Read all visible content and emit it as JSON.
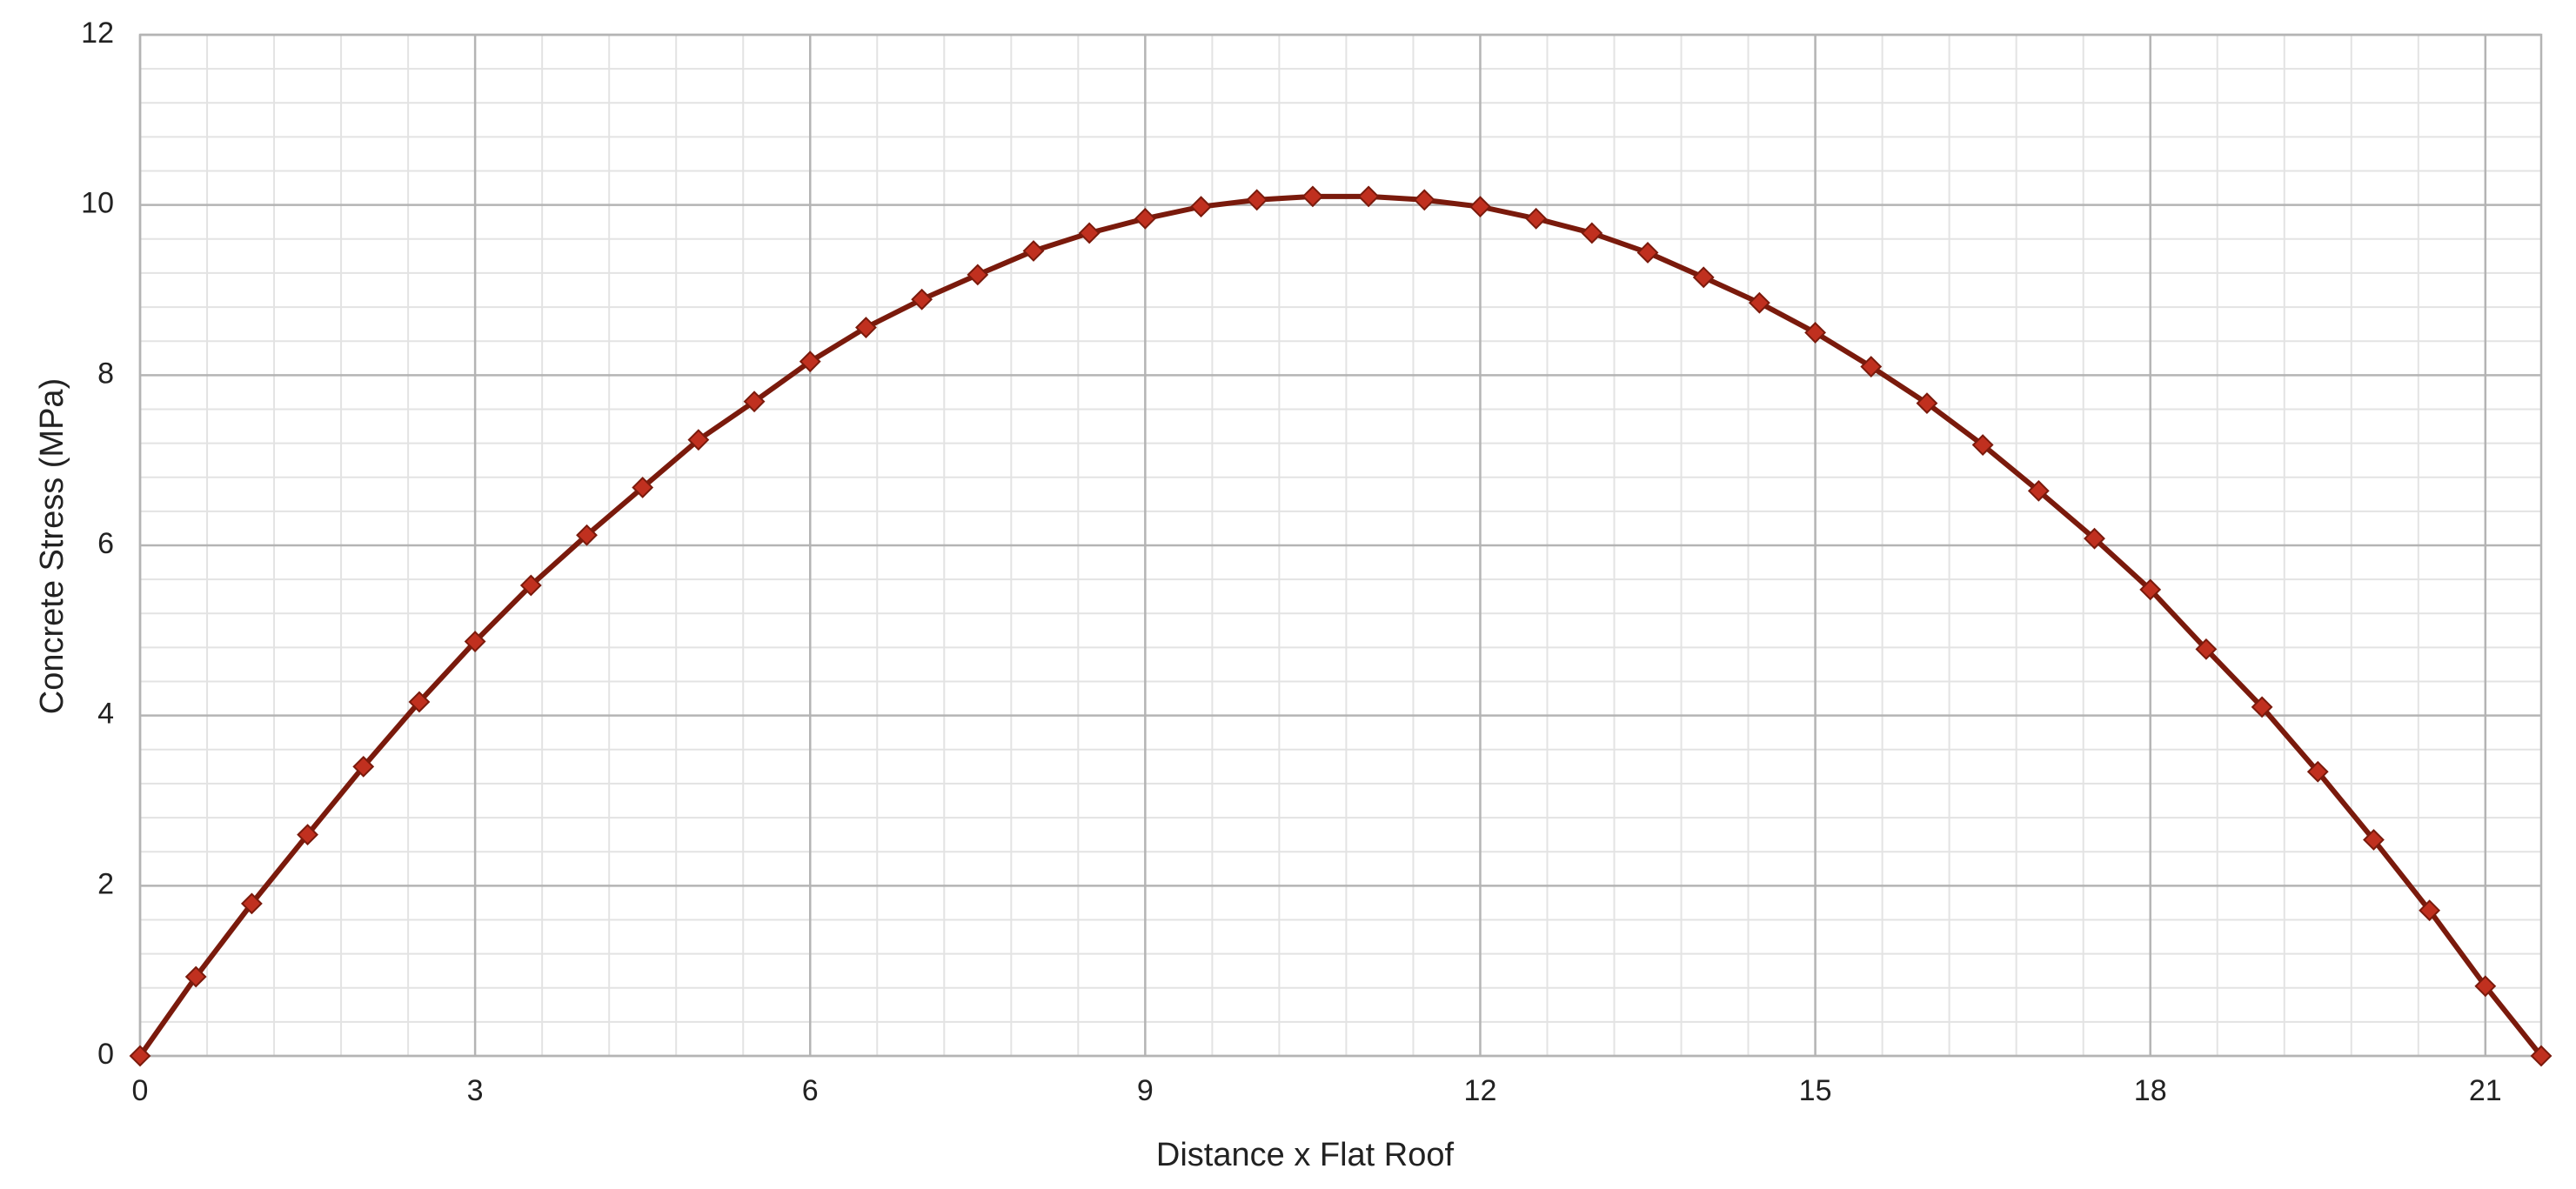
{
  "chart_data": {
    "type": "line",
    "x_label": "Distance x Flat Roof",
    "y_label": "Concrete Stress (MPa)",
    "x": [
      0,
      0.5,
      1,
      1.5,
      2,
      2.5,
      3,
      3.5,
      4,
      4.5,
      5,
      5.5,
      6,
      6.5,
      7,
      7.5,
      8,
      8.5,
      9,
      9.5,
      10,
      10.5,
      11,
      11.5,
      12,
      12.5,
      13,
      13.5,
      14,
      14.5,
      15,
      15.5,
      16,
      16.5,
      17,
      17.5,
      18,
      18.5,
      19,
      19.5,
      20,
      20.5,
      21,
      21.5
    ],
    "values": [
      0,
      0.93,
      1.79,
      2.6,
      3.4,
      4.16,
      4.87,
      5.53,
      6.12,
      6.68,
      7.24,
      7.69,
      8.16,
      8.56,
      8.89,
      9.18,
      9.46,
      9.67,
      9.84,
      9.98,
      10.06,
      10.1,
      10.1,
      10.06,
      9.98,
      9.84,
      9.67,
      9.44,
      9.15,
      8.85,
      8.5,
      8.1,
      7.67,
      7.18,
      6.64,
      6.08,
      5.48,
      4.78,
      4.1,
      3.34,
      2.54,
      1.71,
      0.82,
      0
    ],
    "color": "#7a1a0c",
    "marker_color": "#c0301f",
    "xlim": [
      0,
      21.5
    ],
    "ylim": [
      0,
      12
    ],
    "xticks": [
      0,
      3,
      6,
      9,
      12,
      15,
      18,
      21
    ],
    "yticks": [
      0,
      2,
      4,
      6,
      8,
      10,
      12
    ],
    "grid": true,
    "minor_grid": true
  }
}
